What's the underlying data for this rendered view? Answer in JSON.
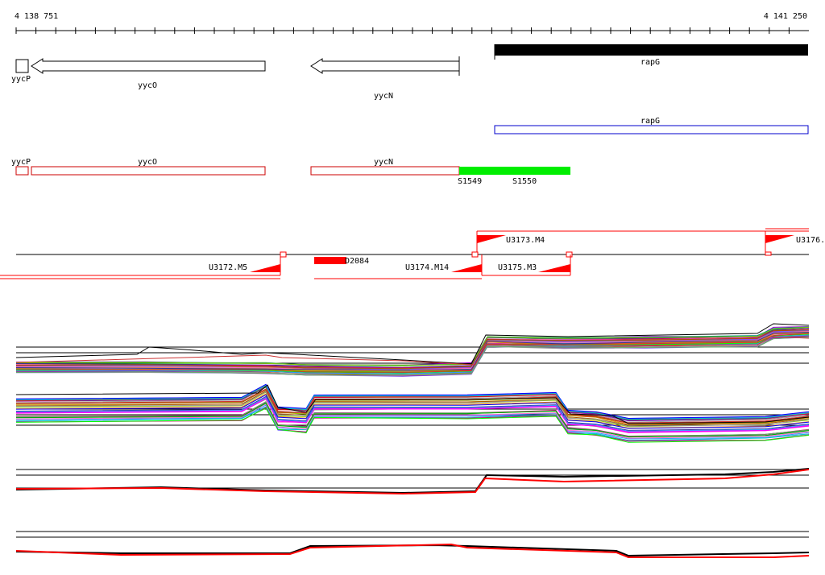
{
  "ruler": {
    "start_label": "4 138 751",
    "end_label": "4 141 250"
  },
  "genes": {
    "yycP": "yycP",
    "yycO": "yycO",
    "yycN": "yycN",
    "rapG": "rapG"
  },
  "transcripts": {
    "rapG": "rapG",
    "yycP": "yycP",
    "yycO": "yycO",
    "yycN": "yycN"
  },
  "segments": {
    "s1549": "S1549",
    "s1550": "S1550"
  },
  "units": {
    "u3173": "U3173.M4",
    "u3176": "U3176.",
    "u3172": "U3172.M5",
    "d2084": "D2084",
    "u3174": "U3174.M14",
    "u3175": "U3175.M3"
  },
  "colors": {
    "gene_fill": "#ffffff",
    "gene_outline": "#000000",
    "transcript_blue": "#0000cc",
    "transcript_red": "#cc0000",
    "segment_green": "#00ee00",
    "unit_red": "#ff0000"
  }
}
